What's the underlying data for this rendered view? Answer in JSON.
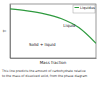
{
  "chart_data": {
    "type": "line",
    "x_label": "Mass fraction",
    "y_label": "T",
    "x": [
      0,
      0.2,
      0.4,
      0.6,
      0.8,
      1.0
    ],
    "series": [
      {
        "name": "Liquidus",
        "color": "#2e9a3e",
        "values": [
          100,
          96,
          90,
          80,
          62,
          30
        ]
      }
    ],
    "xlim": [
      0,
      1
    ],
    "ylim": [
      0,
      110
    ],
    "tick_labels": false,
    "legend": "top-right",
    "annotations": [
      "Liquid",
      "Solid + liquid"
    ],
    "caption": [
      "This line predicts the amount of carbohydrate relative",
      "to the mass of dissolved solid, from the phase diagram"
    ]
  }
}
